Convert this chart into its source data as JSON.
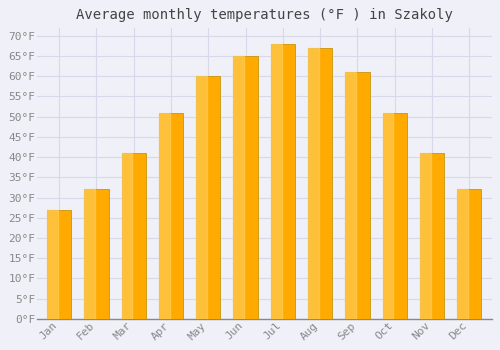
{
  "title": "Average monthly temperatures (°F ) in Szakoly",
  "months": [
    "Jan",
    "Feb",
    "Mar",
    "Apr",
    "May",
    "Jun",
    "Jul",
    "Aug",
    "Sep",
    "Oct",
    "Nov",
    "Dec"
  ],
  "values": [
    27,
    32,
    41,
    51,
    60,
    65,
    68,
    67,
    61,
    51,
    41,
    32
  ],
  "bar_color_main": "#FFAA00",
  "bar_color_light": "#FFD060",
  "bar_edge_color": "#C8960A",
  "background_color": "#F0F0F8",
  "plot_bg_color": "#F0F0F8",
  "grid_color": "#D8D8E8",
  "text_color": "#888888",
  "title_color": "#444444",
  "ylim": [
    0,
    72
  ],
  "yticks": [
    0,
    5,
    10,
    15,
    20,
    25,
    30,
    35,
    40,
    45,
    50,
    55,
    60,
    65,
    70
  ],
  "title_fontsize": 10,
  "tick_fontsize": 8,
  "font_family": "monospace"
}
